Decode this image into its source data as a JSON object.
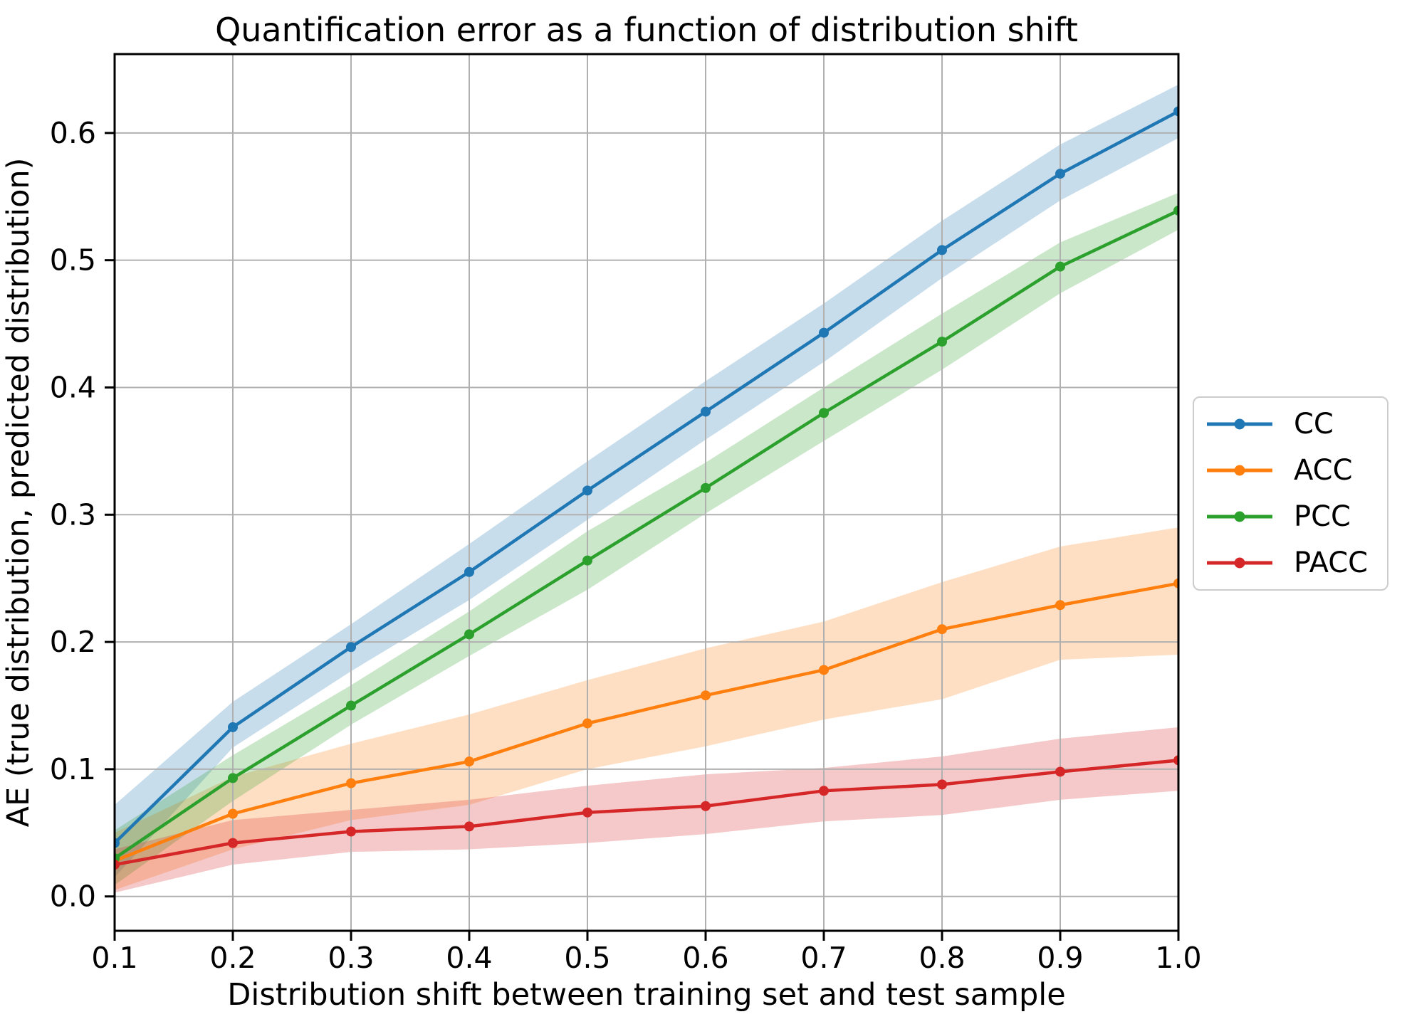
{
  "chart_data": {
    "type": "line",
    "title": "Quantification error as a function of distribution shift",
    "xlabel": "Distribution shift between training set and test sample",
    "ylabel": "AE (true distribution, predicted distribution)",
    "x": [
      0.1,
      0.2,
      0.3,
      0.4,
      0.5,
      0.6,
      0.7,
      0.8,
      0.9,
      1.0
    ],
    "x_ticks": [
      "0.1",
      "0.2",
      "0.3",
      "0.4",
      "0.5",
      "0.6",
      "0.7",
      "0.8",
      "0.9",
      "1.0"
    ],
    "y_ticks": [
      "0.0",
      "0.1",
      "0.2",
      "0.3",
      "0.4",
      "0.5",
      "0.6"
    ],
    "y_tick_values": [
      0.0,
      0.1,
      0.2,
      0.3,
      0.4,
      0.5,
      0.6
    ],
    "xlim": [
      0.1,
      1.0
    ],
    "ylim": [
      -0.027,
      0.662
    ],
    "grid": true,
    "legend_position": "outside-center-right",
    "band_alpha": 0.25,
    "series": [
      {
        "name": "CC",
        "color": "#1f77b4",
        "values": [
          0.042,
          0.133,
          0.196,
          0.255,
          0.319,
          0.381,
          0.443,
          0.508,
          0.568,
          0.617
        ],
        "band_upper": [
          0.072,
          0.153,
          0.214,
          0.277,
          0.342,
          0.405,
          0.466,
          0.531,
          0.591,
          0.638
        ],
        "band_lower": [
          0.015,
          0.117,
          0.177,
          0.233,
          0.296,
          0.359,
          0.42,
          0.486,
          0.547,
          0.596
        ]
      },
      {
        "name": "ACC",
        "color": "#ff7f0e",
        "values": [
          0.028,
          0.065,
          0.089,
          0.106,
          0.136,
          0.158,
          0.178,
          0.21,
          0.229,
          0.246
        ],
        "band_upper": [
          0.05,
          0.094,
          0.12,
          0.143,
          0.17,
          0.195,
          0.216,
          0.247,
          0.275,
          0.29
        ],
        "band_lower": [
          0.005,
          0.037,
          0.06,
          0.072,
          0.1,
          0.118,
          0.139,
          0.155,
          0.186,
          0.19
        ]
      },
      {
        "name": "PCC",
        "color": "#2ca02c",
        "values": [
          0.03,
          0.093,
          0.15,
          0.206,
          0.264,
          0.321,
          0.38,
          0.436,
          0.495,
          0.539
        ],
        "band_upper": [
          0.052,
          0.111,
          0.166,
          0.224,
          0.287,
          0.341,
          0.4,
          0.458,
          0.514,
          0.553
        ],
        "band_lower": [
          0.009,
          0.075,
          0.135,
          0.189,
          0.241,
          0.301,
          0.358,
          0.414,
          0.474,
          0.524
        ]
      },
      {
        "name": "PACC",
        "color": "#d62728",
        "values": [
          0.025,
          0.042,
          0.051,
          0.055,
          0.066,
          0.071,
          0.083,
          0.088,
          0.098,
          0.107
        ],
        "band_upper": [
          0.037,
          0.06,
          0.068,
          0.076,
          0.087,
          0.096,
          0.101,
          0.11,
          0.124,
          0.133
        ],
        "band_lower": [
          0.003,
          0.025,
          0.035,
          0.037,
          0.042,
          0.049,
          0.059,
          0.064,
          0.076,
          0.083
        ]
      }
    ],
    "colors": {
      "background": "#ffffff",
      "grid": "#b0b0b0",
      "spine": "#000000",
      "tick": "#000000",
      "text": "#000000",
      "legend_border": "#cccccc"
    }
  }
}
